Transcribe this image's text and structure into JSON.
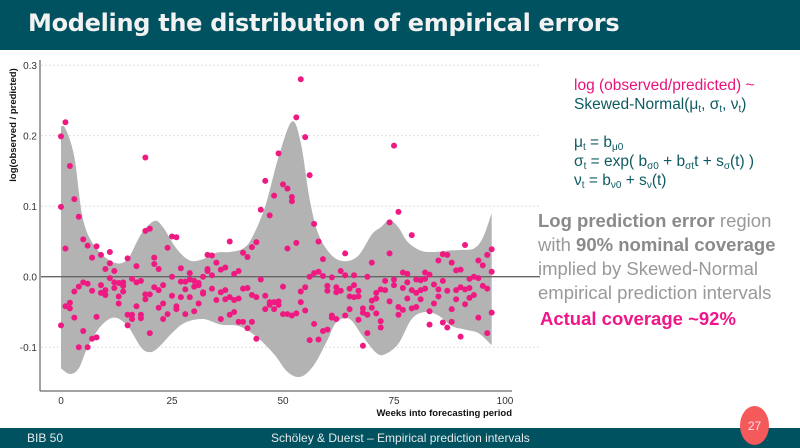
{
  "header": {
    "title": "Modeling the distribution of empirical errors"
  },
  "footer": {
    "left": "BIB 50",
    "center": "Schöley & Duerst  – Empirical prediction intervals",
    "page": "27"
  },
  "colors": {
    "header": "#005260",
    "point": "#ee1a82",
    "band": "#b3b3b3",
    "badge": "#f55a5a"
  },
  "formula": {
    "line1": "log (observed/predicted) ~",
    "lines": [
      [
        [
          "Skewed-Normal(μ",
          0
        ],
        [
          "t",
          1
        ],
        [
          ", σ",
          0
        ],
        [
          "t",
          1
        ],
        [
          ", ν",
          0
        ],
        [
          "t",
          1
        ],
        [
          ")",
          0
        ]
      ],
      [
        [
          "μ",
          0
        ],
        [
          "t",
          1
        ],
        [
          " = b",
          0
        ],
        [
          "μ0",
          1
        ]
      ],
      [
        [
          "σ",
          0
        ],
        [
          "t",
          1
        ],
        [
          " = exp( b",
          0
        ],
        [
          "σ0",
          1
        ],
        [
          " + b",
          0
        ],
        [
          "σt",
          1
        ],
        [
          "t + s",
          0
        ],
        [
          "σ",
          1
        ],
        [
          "(t) )",
          0
        ]
      ],
      [
        [
          "ν",
          0
        ],
        [
          "t",
          1
        ],
        [
          " = b",
          0
        ],
        [
          "ν0",
          1
        ],
        [
          " + s",
          0
        ],
        [
          "ν",
          1
        ],
        [
          "(t)",
          0
        ]
      ]
    ]
  },
  "annotation": {
    "segments": [
      [
        "Log prediction error",
        1
      ],
      [
        " region with ",
        0
      ],
      [
        "90% nominal coverage",
        1
      ],
      [
        " implied by Skewed-Normal empirical prediction intervals",
        0
      ]
    ],
    "actual": "Actual coverage ~92%"
  },
  "chart_data": {
    "type": "scatter",
    "xlabel": "Weeks into forecasting period",
    "ylabel": "log(observed / predicted)",
    "xlim": [
      -5,
      100
    ],
    "ylim": [
      -0.165,
      0.3
    ],
    "xticks": [
      0,
      25,
      50,
      75,
      100
    ],
    "xtick_labels": [
      "0",
      "25",
      "50",
      "75",
      "100"
    ],
    "yticks": [
      -0.1,
      0.0,
      0.1,
      0.2,
      0.3
    ],
    "ytick_labels": [
      "-0.1",
      "0.0",
      "0.1",
      "0.2",
      "0.3"
    ],
    "grid": "horizontal dotted",
    "reference_line": 0,
    "band": {
      "upper": [
        [
          0,
          0.213
        ],
        [
          1,
          0.21
        ],
        [
          3,
          0.17
        ],
        [
          5,
          0.08
        ],
        [
          8,
          0.04
        ],
        [
          12,
          0.02
        ],
        [
          15,
          0.025
        ],
        [
          18,
          0.06
        ],
        [
          21,
          0.079
        ],
        [
          23,
          0.07
        ],
        [
          26,
          0.04
        ],
        [
          29,
          0.023
        ],
        [
          32,
          0.025
        ],
        [
          35,
          0.034
        ],
        [
          38,
          0.035
        ],
        [
          41,
          0.04
        ],
        [
          43,
          0.055
        ],
        [
          46,
          0.1
        ],
        [
          49,
          0.17
        ],
        [
          52,
          0.22
        ],
        [
          54,
          0.19
        ],
        [
          56,
          0.11
        ],
        [
          58,
          0.06
        ],
        [
          61,
          0.03
        ],
        [
          64,
          0.022
        ],
        [
          67,
          0.03
        ],
        [
          70,
          0.06
        ],
        [
          72,
          0.07
        ],
        [
          74,
          0.08
        ],
        [
          76,
          0.07
        ],
        [
          78,
          0.05
        ],
        [
          81,
          0.037
        ],
        [
          84,
          0.035
        ],
        [
          87,
          0.037
        ],
        [
          90,
          0.038
        ],
        [
          93,
          0.04
        ],
        [
          95,
          0.055
        ],
        [
          97,
          0.09
        ]
      ],
      "lower": [
        [
          0,
          -0.13
        ],
        [
          2,
          -0.138
        ],
        [
          4,
          -0.13
        ],
        [
          6,
          -0.1
        ],
        [
          9,
          -0.07
        ],
        [
          12,
          -0.058
        ],
        [
          15,
          -0.07
        ],
        [
          18,
          -0.1
        ],
        [
          20,
          -0.107
        ],
        [
          22,
          -0.1
        ],
        [
          25,
          -0.08
        ],
        [
          28,
          -0.065
        ],
        [
          32,
          -0.06
        ],
        [
          36,
          -0.068
        ],
        [
          40,
          -0.07
        ],
        [
          44,
          -0.085
        ],
        [
          48,
          -0.11
        ],
        [
          51,
          -0.135
        ],
        [
          54,
          -0.142
        ],
        [
          57,
          -0.125
        ],
        [
          60,
          -0.09
        ],
        [
          62,
          -0.065
        ],
        [
          65,
          -0.06
        ],
        [
          68,
          -0.085
        ],
        [
          71,
          -0.108
        ],
        [
          73,
          -0.11
        ],
        [
          76,
          -0.095
        ],
        [
          79,
          -0.06
        ],
        [
          82,
          -0.05
        ],
        [
          85,
          -0.055
        ],
        [
          88,
          -0.07
        ],
        [
          91,
          -0.075
        ],
        [
          94,
          -0.08
        ],
        [
          97,
          -0.097
        ]
      ]
    },
    "points": [
      [
        0,
        0.099
      ],
      [
        0,
        0.199
      ],
      [
        0,
        -0.069
      ],
      [
        1,
        0.219
      ],
      [
        1,
        0.04
      ],
      [
        1,
        -0.042
      ],
      [
        2,
        0.157
      ],
      [
        2,
        -0.037
      ],
      [
        2,
        -0.045
      ],
      [
        3,
        0.11
      ],
      [
        3,
        -0.021
      ],
      [
        3,
        -0.058
      ],
      [
        4,
        0.085
      ],
      [
        4,
        -0.014
      ],
      [
        4,
        -0.1
      ],
      [
        5,
        0.053
      ],
      [
        5,
        -0.008
      ],
      [
        5,
        -0.077
      ],
      [
        6,
        0.044
      ],
      [
        6,
        -0.01
      ],
      [
        6,
        -0.1
      ],
      [
        7,
        0.027
      ],
      [
        7,
        -0.02
      ],
      [
        7,
        -0.088
      ],
      [
        8,
        0.043
      ],
      [
        8,
        -0.057
      ],
      [
        8,
        -0.086
      ],
      [
        9,
        0.031
      ],
      [
        9,
        -0.012
      ],
      [
        9,
        -0.023
      ],
      [
        10,
        0.011
      ],
      [
        10,
        -0.019
      ],
      [
        10,
        -0.026
      ],
      [
        11,
        0.035
      ],
      [
        11,
        0.019
      ],
      [
        11,
        -0.002
      ],
      [
        12,
        0.008
      ],
      [
        12,
        -0.008
      ],
      [
        12,
        -0.016
      ],
      [
        13,
        -0.009
      ],
      [
        13,
        -0.028
      ],
      [
        13,
        -0.038
      ],
      [
        14,
        -0.008
      ],
      [
        14,
        -0.013
      ],
      [
        14,
        -0.021
      ],
      [
        15,
        0.026
      ],
      [
        15,
        -0.054
      ],
      [
        15,
        -0.069
      ],
      [
        16,
        -0.003
      ],
      [
        16,
        -0.054
      ],
      [
        16,
        -0.06
      ],
      [
        17,
        0.015
      ],
      [
        17,
        -0.008
      ],
      [
        17,
        -0.042
      ],
      [
        18,
        -0.006
      ],
      [
        18,
        -0.054
      ],
      [
        18,
        -0.059
      ],
      [
        19,
        0.169
      ],
      [
        19,
        0.065
      ],
      [
        19,
        -0.025
      ],
      [
        19,
        -0.032
      ],
      [
        20,
        0.068
      ],
      [
        20,
        -0.025
      ],
      [
        20,
        -0.08
      ],
      [
        21,
        0.027
      ],
      [
        21,
        0.018
      ],
      [
        21,
        -0.015
      ],
      [
        22,
        0.011
      ],
      [
        22,
        -0.019
      ],
      [
        22,
        -0.044
      ],
      [
        23,
        -0.012
      ],
      [
        23,
        -0.038
      ],
      [
        23,
        -0.06
      ],
      [
        24,
        0.041
      ],
      [
        24,
        -0.053
      ],
      [
        25,
        0.057
      ],
      [
        25,
        0.0
      ],
      [
        25,
        -0.027
      ],
      [
        26,
        0.056
      ],
      [
        26,
        -0.042
      ],
      [
        26,
        -0.046
      ],
      [
        27,
        0.012
      ],
      [
        27,
        -0.007
      ],
      [
        27,
        -0.029
      ],
      [
        28,
        -0.007
      ],
      [
        28,
        -0.018
      ],
      [
        28,
        -0.053
      ],
      [
        29,
        0.005
      ],
      [
        29,
        -0.004
      ],
      [
        29,
        -0.029
      ],
      [
        30,
        -0.006
      ],
      [
        30,
        -0.014
      ],
      [
        30,
        -0.049
      ],
      [
        31,
        -0.009
      ],
      [
        31,
        -0.012
      ],
      [
        31,
        -0.038
      ],
      [
        32,
        0.0
      ],
      [
        32,
        -0.022
      ],
      [
        32,
        -0.024
      ],
      [
        33,
        0.031
      ],
      [
        33,
        0.011
      ],
      [
        33,
        0.008
      ],
      [
        34,
        0.03
      ],
      [
        34,
        0.002
      ],
      [
        34,
        -0.017
      ],
      [
        35,
        0.02
      ],
      [
        35,
        -0.033
      ],
      [
        36,
        0.01
      ],
      [
        36,
        -0.022
      ],
      [
        36,
        -0.06
      ],
      [
        37,
        0.013
      ],
      [
        37,
        -0.019
      ],
      [
        37,
        -0.032
      ],
      [
        38,
        0.05
      ],
      [
        38,
        -0.029
      ],
      [
        38,
        -0.054
      ],
      [
        39,
        0.004
      ],
      [
        39,
        -0.033
      ],
      [
        39,
        -0.05
      ],
      [
        40,
        0.008
      ],
      [
        40,
        -0.031
      ],
      [
        40,
        -0.064
      ],
      [
        41,
        0.034
      ],
      [
        41,
        -0.017
      ],
      [
        41,
        -0.064
      ],
      [
        42,
        0.028
      ],
      [
        42,
        -0.016
      ],
      [
        42,
        -0.073
      ],
      [
        43,
        0.042
      ],
      [
        43,
        -0.026
      ],
      [
        43,
        -0.064
      ],
      [
        44,
        0.049
      ],
      [
        44,
        -0.029
      ],
      [
        44,
        -0.088
      ],
      [
        45,
        0.095
      ],
      [
        45,
        -0.004
      ],
      [
        46,
        0.136
      ],
      [
        46,
        -0.027
      ],
      [
        46,
        -0.046
      ],
      [
        47,
        0.087
      ],
      [
        47,
        -0.036
      ],
      [
        47,
        -0.04
      ],
      [
        48,
        0.115
      ],
      [
        48,
        -0.036
      ],
      [
        48,
        -0.046
      ],
      [
        49,
        0.175
      ],
      [
        49,
        -0.035
      ],
      [
        49,
        -0.04
      ],
      [
        50,
        0.131
      ],
      [
        50,
        -0.014
      ],
      [
        50,
        -0.053
      ],
      [
        51,
        0.125
      ],
      [
        51,
        0.04
      ],
      [
        51,
        -0.053
      ],
      [
        52,
        0.113
      ],
      [
        52,
        0.107
      ],
      [
        52,
        -0.055
      ],
      [
        53,
        0.226
      ],
      [
        53,
        0.048
      ],
      [
        53,
        -0.052
      ],
      [
        54,
        0.28
      ],
      [
        54,
        -0.021
      ],
      [
        54,
        -0.036
      ],
      [
        55,
        0.198
      ],
      [
        55,
        -0.015
      ],
      [
        55,
        -0.048
      ],
      [
        56,
        0.144
      ],
      [
        56,
        0.0
      ],
      [
        56,
        -0.09
      ],
      [
        57,
        0.075
      ],
      [
        57,
        0.005
      ],
      [
        57,
        -0.067
      ],
      [
        58,
        0.05
      ],
      [
        58,
        0.007
      ],
      [
        58,
        -0.089
      ],
      [
        59,
        0.025
      ],
      [
        59,
        0.001
      ],
      [
        59,
        -0.077
      ],
      [
        60,
        -0.013
      ],
      [
        60,
        -0.02
      ],
      [
        60,
        -0.075
      ],
      [
        61,
        -0.001
      ],
      [
        61,
        -0.055
      ],
      [
        61,
        -0.058
      ],
      [
        62,
        -0.015
      ],
      [
        62,
        -0.022
      ],
      [
        62,
        -0.06
      ],
      [
        63,
        0.008
      ],
      [
        63,
        -0.02
      ],
      [
        64,
        0.033
      ],
      [
        64,
        0.002
      ],
      [
        64,
        -0.055
      ],
      [
        65,
        -0.017
      ],
      [
        65,
        -0.028
      ],
      [
        65,
        -0.046
      ],
      [
        66,
        0.002
      ],
      [
        66,
        -0.012
      ],
      [
        66,
        -0.029
      ],
      [
        67,
        -0.02
      ],
      [
        67,
        -0.028
      ],
      [
        67,
        -0.061
      ],
      [
        68,
        -0.045
      ],
      [
        68,
        -0.051
      ],
      [
        68,
        -0.098
      ],
      [
        69,
        0.0
      ],
      [
        69,
        -0.054
      ],
      [
        69,
        -0.08
      ],
      [
        70,
        0.02
      ],
      [
        70,
        -0.034
      ],
      [
        70,
        -0.044
      ],
      [
        71,
        -0.023
      ],
      [
        71,
        -0.031
      ],
      [
        71,
        -0.052
      ],
      [
        72,
        -0.018
      ],
      [
        72,
        -0.063
      ],
      [
        72,
        -0.072
      ],
      [
        73,
        -0.006
      ],
      [
        73,
        -0.019
      ],
      [
        74,
        0.077
      ],
      [
        74,
        0.033
      ],
      [
        74,
        -0.035
      ],
      [
        75,
        0.186
      ],
      [
        75,
        -0.004
      ],
      [
        75,
        -0.012
      ],
      [
        76,
        0.092
      ],
      [
        76,
        -0.043
      ],
      [
        76,
        -0.054
      ],
      [
        77,
        0.006
      ],
      [
        77,
        -0.016
      ],
      [
        77,
        -0.047
      ],
      [
        78,
        0.004
      ],
      [
        78,
        -0.008
      ],
      [
        78,
        -0.031
      ],
      [
        79,
        0.059
      ],
      [
        79,
        -0.019
      ],
      [
        79,
        -0.045
      ],
      [
        80,
        -0.004
      ],
      [
        80,
        -0.023
      ],
      [
        80,
        -0.043
      ],
      [
        81,
        -0.005
      ],
      [
        81,
        -0.019
      ],
      [
        81,
        -0.032
      ],
      [
        82,
        0.006
      ],
      [
        82,
        -0.003
      ],
      [
        82,
        -0.017
      ],
      [
        83,
        0.003
      ],
      [
        83,
        -0.049
      ],
      [
        83,
        -0.068
      ],
      [
        84,
        -0.011
      ],
      [
        84,
        -0.038
      ],
      [
        85,
        0.023
      ],
      [
        85,
        -0.018
      ],
      [
        85,
        -0.028
      ],
      [
        86,
        0.032
      ],
      [
        86,
        -0.006
      ],
      [
        86,
        -0.065
      ],
      [
        87,
        0.031
      ],
      [
        87,
        -0.02
      ],
      [
        87,
        -0.072
      ],
      [
        88,
        0.02
      ],
      [
        88,
        -0.046
      ],
      [
        88,
        -0.064
      ],
      [
        89,
        0.009
      ],
      [
        89,
        -0.019
      ],
      [
        89,
        -0.032
      ],
      [
        90,
        0.01
      ],
      [
        90,
        -0.015
      ],
      [
        90,
        -0.085
      ],
      [
        91,
        0.045
      ],
      [
        91,
        -0.018
      ],
      [
        91,
        -0.039
      ],
      [
        92,
        -0.003
      ],
      [
        92,
        -0.016
      ],
      [
        92,
        -0.03
      ],
      [
        93,
        0.0
      ],
      [
        93,
        -0.026
      ],
      [
        94,
        0.023
      ],
      [
        94,
        -0.002
      ],
      [
        94,
        -0.058
      ],
      [
        95,
        0.016
      ],
      [
        95,
        -0.013
      ],
      [
        96,
        0.031
      ],
      [
        96,
        -0.017
      ],
      [
        96,
        -0.08
      ],
      [
        97,
        0.039
      ],
      [
        97,
        0.007
      ],
      [
        97,
        -0.051
      ]
    ]
  }
}
